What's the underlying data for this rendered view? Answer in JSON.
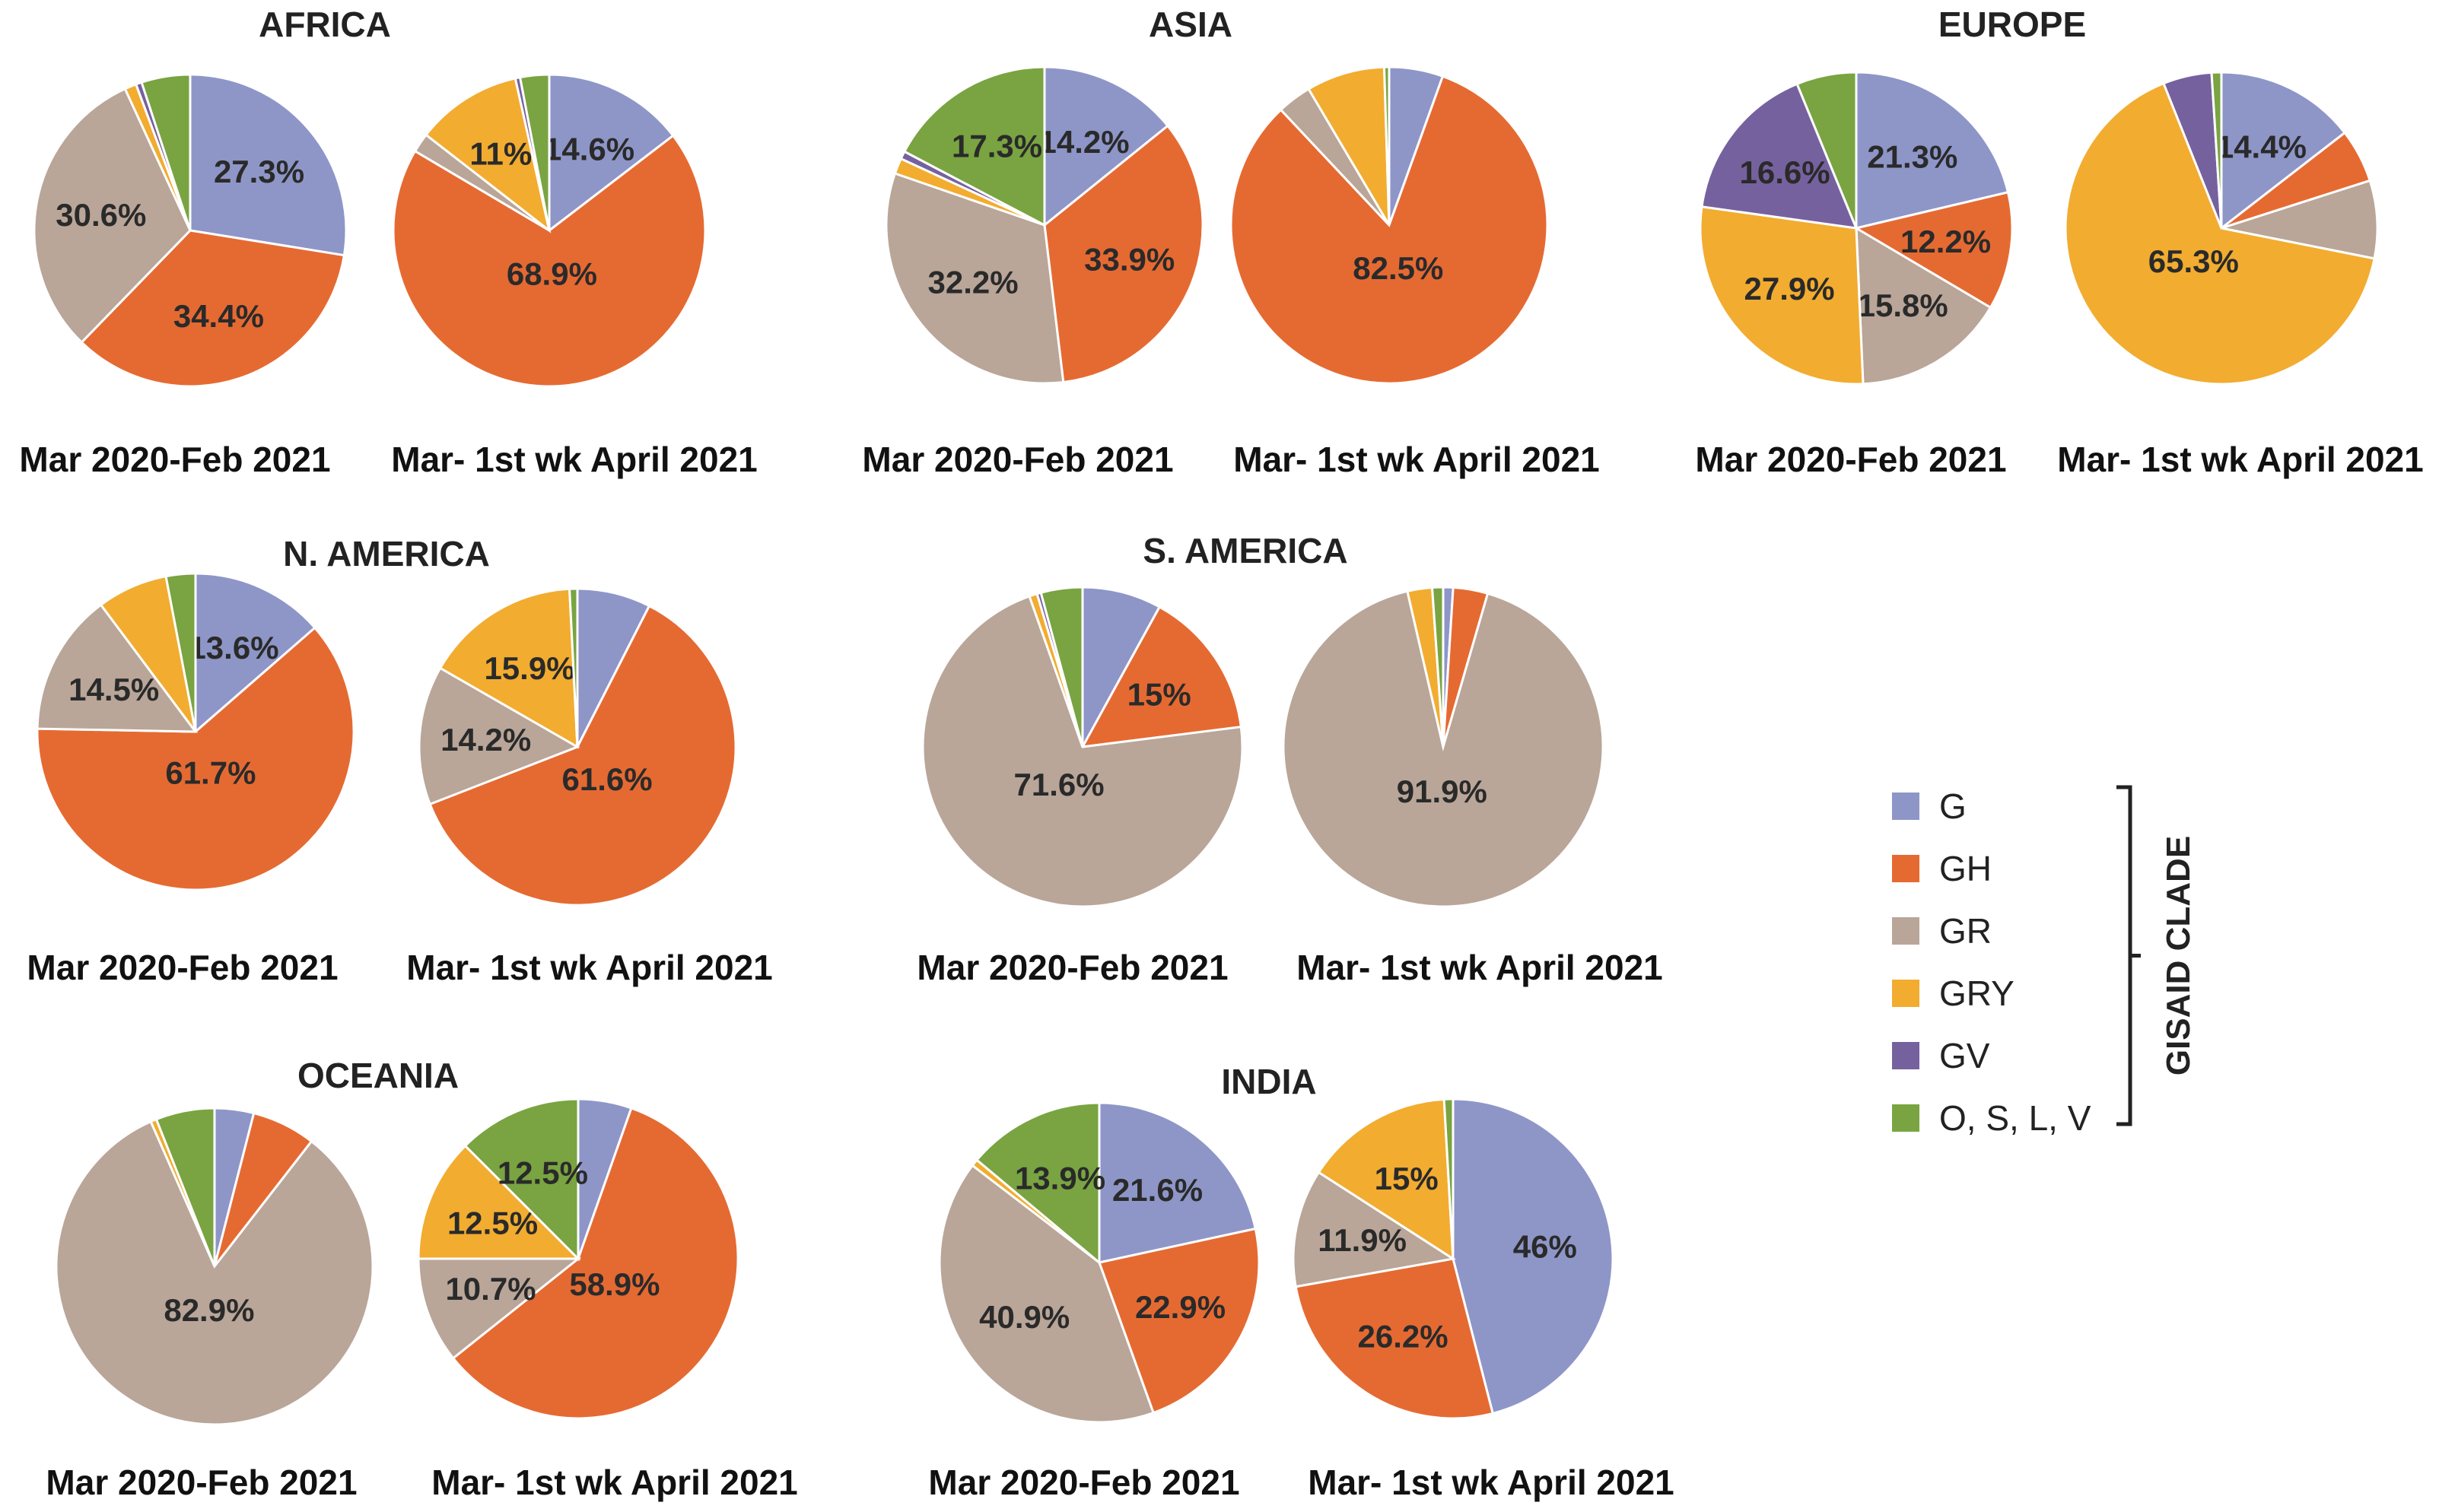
{
  "colors": {
    "G": "#8E96C8",
    "GH": "#E56A32",
    "GR": "#B9A699",
    "GRY": "#F2AC30",
    "GV": "#76619F",
    "O, S, L, V": "#79A441"
  },
  "period_labels": [
    "Mar 2020-Feb 2021",
    "Mar- 1st wk April 2021"
  ],
  "legend": {
    "title": "GISAID CLADE",
    "items": [
      {
        "clade": "G",
        "label": "G",
        "icon": "square-swatch"
      },
      {
        "clade": "GH",
        "label": "GH",
        "icon": "square-swatch"
      },
      {
        "clade": "GR",
        "label": "GR",
        "icon": "square-swatch"
      },
      {
        "clade": "GRY",
        "label": "GRY",
        "icon": "square-swatch"
      },
      {
        "clade": "GV",
        "label": "GV",
        "icon": "square-swatch"
      },
      {
        "clade": "O, S, L, V",
        "label": "O, S, L, V",
        "icon": "square-swatch"
      }
    ]
  },
  "chart_data": [
    {
      "type": "pie",
      "region": "AFRICA",
      "title": "AFRICA",
      "period": "Mar 2020-Feb 2021",
      "slices": [
        {
          "clade": "G",
          "value": 27.3,
          "label": "27.3%"
        },
        {
          "clade": "GH",
          "value": 34.4,
          "label": "34.4%"
        },
        {
          "clade": "GR",
          "value": 30.6,
          "label": "30.6%"
        },
        {
          "clade": "GRY",
          "value": 1.2,
          "label": ""
        },
        {
          "clade": "GV",
          "value": 0.6,
          "label": ""
        },
        {
          "clade": "O, S, L, V",
          "value": 5.0,
          "label": ""
        }
      ]
    },
    {
      "type": "pie",
      "region": "AFRICA",
      "title": "",
      "period": "Mar- 1st wk April 2021",
      "slices": [
        {
          "clade": "G",
          "value": 14.6,
          "label": "14.6%"
        },
        {
          "clade": "GH",
          "value": 68.9,
          "label": "68.9%"
        },
        {
          "clade": "GR",
          "value": 2.0,
          "label": ""
        },
        {
          "clade": "GRY",
          "value": 11.0,
          "label": "11%"
        },
        {
          "clade": "GV",
          "value": 0.5,
          "label": ""
        },
        {
          "clade": "O, S, L, V",
          "value": 3.0,
          "label": ""
        }
      ]
    },
    {
      "type": "pie",
      "region": "ASIA",
      "title": "ASIA",
      "period": "Mar 2020-Feb 2021",
      "slices": [
        {
          "clade": "G",
          "value": 14.2,
          "label": "14.2%"
        },
        {
          "clade": "GH",
          "value": 33.9,
          "label": "33.9%"
        },
        {
          "clade": "GR",
          "value": 32.2,
          "label": "32.2%"
        },
        {
          "clade": "GRY",
          "value": 1.6,
          "label": ""
        },
        {
          "clade": "GV",
          "value": 0.8,
          "label": ""
        },
        {
          "clade": "O, S, L, V",
          "value": 17.3,
          "label": "17.3%"
        }
      ]
    },
    {
      "type": "pie",
      "region": "ASIA",
      "title": "",
      "period": "Mar- 1st wk April 2021",
      "slices": [
        {
          "clade": "G",
          "value": 5.5,
          "label": ""
        },
        {
          "clade": "GH",
          "value": 82.5,
          "label": "82.5%"
        },
        {
          "clade": "GR",
          "value": 3.5,
          "label": ""
        },
        {
          "clade": "GRY",
          "value": 8.0,
          "label": ""
        },
        {
          "clade": "GV",
          "value": 0.0,
          "label": ""
        },
        {
          "clade": "O, S, L, V",
          "value": 0.5,
          "label": ""
        }
      ]
    },
    {
      "type": "pie",
      "region": "EUROPE",
      "title": "EUROPE",
      "period": "Mar 2020-Feb 2021",
      "slices": [
        {
          "clade": "G",
          "value": 21.3,
          "label": "21.3%"
        },
        {
          "clade": "GH",
          "value": 12.2,
          "label": "12.2%"
        },
        {
          "clade": "GR",
          "value": 15.8,
          "label": "15.8%"
        },
        {
          "clade": "GRY",
          "value": 27.9,
          "label": "27.9%"
        },
        {
          "clade": "GV",
          "value": 16.6,
          "label": "16.6%"
        },
        {
          "clade": "O, S, L, V",
          "value": 6.2,
          "label": ""
        }
      ]
    },
    {
      "type": "pie",
      "region": "EUROPE",
      "title": "",
      "period": "Mar- 1st wk April 2021",
      "slices": [
        {
          "clade": "G",
          "value": 14.4,
          "label": "14.4%"
        },
        {
          "clade": "GH",
          "value": 5.5,
          "label": ""
        },
        {
          "clade": "GR",
          "value": 8.0,
          "label": ""
        },
        {
          "clade": "GRY",
          "value": 65.3,
          "label": "65.3%"
        },
        {
          "clade": "GV",
          "value": 5.0,
          "label": ""
        },
        {
          "clade": "O, S, L, V",
          "value": 1.0,
          "label": ""
        }
      ]
    },
    {
      "type": "pie",
      "region": "N. AMERICA",
      "title": "N. AMERICA",
      "period": "Mar 2020-Feb 2021",
      "slices": [
        {
          "clade": "G",
          "value": 13.6,
          "label": "13.6%"
        },
        {
          "clade": "GH",
          "value": 61.7,
          "label": "61.7%"
        },
        {
          "clade": "GR",
          "value": 14.5,
          "label": "14.5%"
        },
        {
          "clade": "GRY",
          "value": 7.2,
          "label": ""
        },
        {
          "clade": "GV",
          "value": 0.0,
          "label": ""
        },
        {
          "clade": "O, S, L, V",
          "value": 3.0,
          "label": ""
        }
      ]
    },
    {
      "type": "pie",
      "region": "N. AMERICA",
      "title": "",
      "period": "Mar- 1st wk April 2021",
      "slices": [
        {
          "clade": "G",
          "value": 7.5,
          "label": ""
        },
        {
          "clade": "GH",
          "value": 61.6,
          "label": "61.6%"
        },
        {
          "clade": "GR",
          "value": 14.2,
          "label": "14.2%"
        },
        {
          "clade": "GRY",
          "value": 15.9,
          "label": "15.9%"
        },
        {
          "clade": "GV",
          "value": 0.0,
          "label": ""
        },
        {
          "clade": "O, S, L, V",
          "value": 0.8,
          "label": ""
        }
      ]
    },
    {
      "type": "pie",
      "region": "S. AMERICA",
      "title": "S. AMERICA",
      "period": "Mar 2020-Feb 2021",
      "slices": [
        {
          "clade": "G",
          "value": 8.0,
          "label": ""
        },
        {
          "clade": "GH",
          "value": 15.0,
          "label": "15%"
        },
        {
          "clade": "GR",
          "value": 71.6,
          "label": "71.6%"
        },
        {
          "clade": "GRY",
          "value": 0.8,
          "label": ""
        },
        {
          "clade": "GV",
          "value": 0.4,
          "label": ""
        },
        {
          "clade": "O, S, L, V",
          "value": 4.2,
          "label": ""
        }
      ]
    },
    {
      "type": "pie",
      "region": "S. AMERICA",
      "title": "",
      "period": "Mar- 1st wk April 2021",
      "slices": [
        {
          "clade": "G",
          "value": 1.0,
          "label": ""
        },
        {
          "clade": "GH",
          "value": 3.5,
          "label": ""
        },
        {
          "clade": "GR",
          "value": 91.9,
          "label": "91.9%"
        },
        {
          "clade": "GRY",
          "value": 2.5,
          "label": ""
        },
        {
          "clade": "GV",
          "value": 0.0,
          "label": ""
        },
        {
          "clade": "O, S, L, V",
          "value": 1.1,
          "label": ""
        }
      ]
    },
    {
      "type": "pie",
      "region": "OCEANIA",
      "title": "OCEANIA",
      "period": "Mar 2020-Feb 2021",
      "slices": [
        {
          "clade": "G",
          "value": 4.0,
          "label": ""
        },
        {
          "clade": "GH",
          "value": 6.5,
          "label": ""
        },
        {
          "clade": "GR",
          "value": 82.9,
          "label": "82.9%"
        },
        {
          "clade": "GRY",
          "value": 0.6,
          "label": ""
        },
        {
          "clade": "GV",
          "value": 0.0,
          "label": ""
        },
        {
          "clade": "O, S, L, V",
          "value": 6.0,
          "label": ""
        }
      ]
    },
    {
      "type": "pie",
      "region": "OCEANIA",
      "title": "",
      "period": "Mar- 1st wk April 2021",
      "slices": [
        {
          "clade": "G",
          "value": 5.4,
          "label": ""
        },
        {
          "clade": "GH",
          "value": 58.9,
          "label": "58.9%"
        },
        {
          "clade": "GR",
          "value": 10.7,
          "label": "10.7%"
        },
        {
          "clade": "GRY",
          "value": 12.5,
          "label": "12.5%"
        },
        {
          "clade": "GV",
          "value": 0.0,
          "label": ""
        },
        {
          "clade": "O, S, L, V",
          "value": 12.5,
          "label": "12.5%"
        }
      ]
    },
    {
      "type": "pie",
      "region": "INDIA",
      "title": "INDIA",
      "period": "Mar 2020-Feb 2021",
      "slices": [
        {
          "clade": "G",
          "value": 21.6,
          "label": "21.6%"
        },
        {
          "clade": "GH",
          "value": 22.9,
          "label": "22.9%"
        },
        {
          "clade": "GR",
          "value": 40.9,
          "label": "40.9%"
        },
        {
          "clade": "GRY",
          "value": 0.7,
          "label": ""
        },
        {
          "clade": "GV",
          "value": 0.0,
          "label": ""
        },
        {
          "clade": "O, S, L, V",
          "value": 13.9,
          "label": "13.9%"
        }
      ]
    },
    {
      "type": "pie",
      "region": "INDIA",
      "title": "",
      "period": "Mar- 1st wk April 2021",
      "slices": [
        {
          "clade": "G",
          "value": 46.0,
          "label": "46%"
        },
        {
          "clade": "GH",
          "value": 26.2,
          "label": "26.2%"
        },
        {
          "clade": "GR",
          "value": 11.9,
          "label": "11.9%"
        },
        {
          "clade": "GRY",
          "value": 15.0,
          "label": "15%"
        },
        {
          "clade": "GV",
          "value": 0.0,
          "label": ""
        },
        {
          "clade": "O, S, L, V",
          "value": 0.9,
          "label": ""
        }
      ]
    }
  ]
}
